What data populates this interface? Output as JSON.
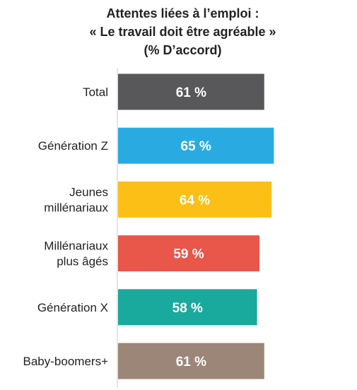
{
  "chart_data": {
    "type": "bar",
    "orientation": "horizontal",
    "title_lines": [
      "Attentes liées à l’emploi :",
      "« Le travail doit être agréable »",
      "(% D’accord)"
    ],
    "categories": [
      [
        "Total"
      ],
      [
        "Génération Z"
      ],
      [
        "Jeunes",
        "millénariaux"
      ],
      [
        "Millénariaux",
        "plus âgés"
      ],
      [
        "Génération X"
      ],
      [
        "Baby-boomers+"
      ]
    ],
    "values": [
      61,
      65,
      64,
      59,
      58,
      61
    ],
    "value_labels": [
      "61 %",
      "65 %",
      "64 %",
      "59 %",
      "58 %",
      "61 %"
    ],
    "bar_colors": [
      "#58585a",
      "#29abe2",
      "#fbbf15",
      "#e9564a",
      "#1aa99d",
      "#9c8677"
    ],
    "xlim": [
      0,
      100
    ],
    "grid": false
  }
}
